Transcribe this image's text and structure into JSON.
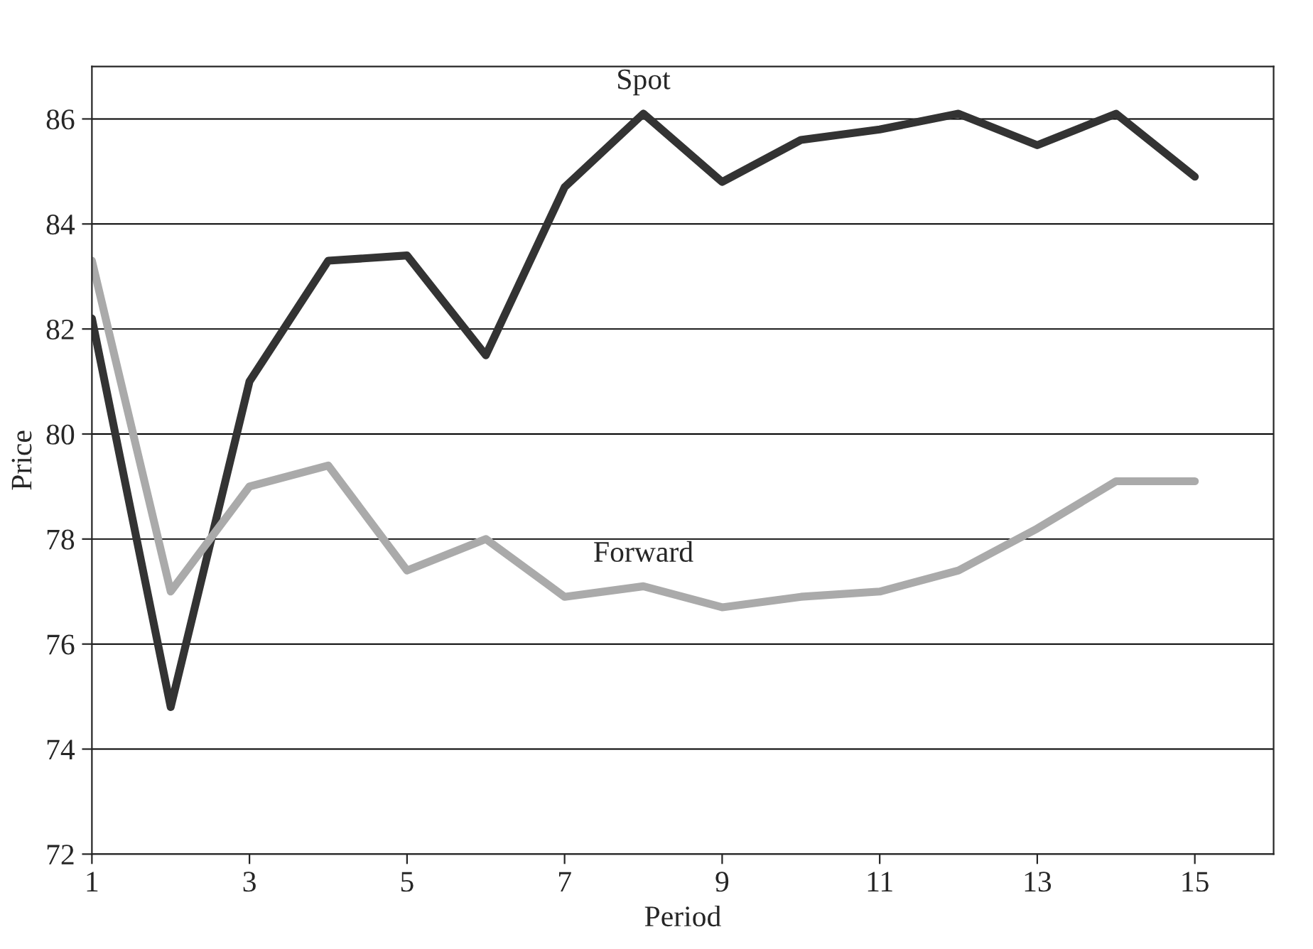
{
  "chart_data": {
    "type": "line",
    "xlabel": "Period",
    "ylabel": "Price",
    "x": [
      1,
      2,
      3,
      4,
      5,
      6,
      7,
      8,
      9,
      10,
      11,
      12,
      13,
      14,
      15
    ],
    "series": [
      {
        "name": "Spot",
        "color": "#333333",
        "values": [
          82.2,
          74.8,
          81.0,
          83.3,
          83.4,
          81.5,
          84.7,
          86.1,
          84.8,
          85.6,
          85.8,
          86.1,
          85.5,
          86.1,
          84.9
        ]
      },
      {
        "name": "Forward",
        "color": "#aaaaaa",
        "values": [
          83.3,
          77.0,
          79.0,
          79.4,
          77.4,
          78.0,
          76.9,
          77.1,
          76.7,
          76.9,
          77.0,
          77.4,
          78.2,
          79.1,
          79.1
        ]
      }
    ],
    "xlim": [
      1,
      16
    ],
    "xticks": [
      1,
      3,
      5,
      7,
      9,
      11,
      13,
      15
    ],
    "ylim": [
      72,
      87
    ],
    "yticks": [
      72,
      74,
      76,
      78,
      80,
      82,
      84,
      86
    ],
    "grid": "y",
    "marker": "none",
    "line_style": "solid"
  }
}
